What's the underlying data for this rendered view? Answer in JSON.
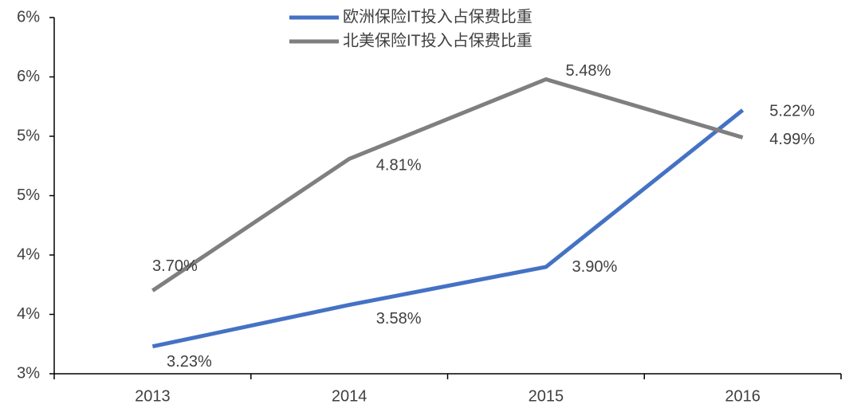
{
  "chart_data": {
    "type": "line",
    "categories": [
      "2013",
      "2014",
      "2015",
      "2016"
    ],
    "series": [
      {
        "name": "欧洲保险IT投入占保费比重",
        "color": "#4472c4",
        "values": [
          3.23,
          3.58,
          3.9,
          5.22
        ],
        "value_labels": [
          "3.23%",
          "3.58%",
          "3.90%",
          "5.22%"
        ]
      },
      {
        "name": "北美保险IT投入占保费比重",
        "color": "#7f7f7f",
        "values": [
          3.7,
          4.81,
          5.48,
          4.99
        ],
        "value_labels": [
          "3.70%",
          "4.81%",
          "5.48%",
          "4.99%"
        ]
      }
    ],
    "ylim": [
      3,
      6
    ],
    "yticks": [
      {
        "value": 3,
        "label": "3%"
      },
      {
        "value": 3.5,
        "label": "4%"
      },
      {
        "value": 4,
        "label": "4%"
      },
      {
        "value": 4.5,
        "label": "5%"
      },
      {
        "value": 5,
        "label": "5%"
      },
      {
        "value": 5.5,
        "label": "6%"
      },
      {
        "value": 6,
        "label": "6%"
      }
    ],
    "grid": false,
    "legend": "top"
  }
}
